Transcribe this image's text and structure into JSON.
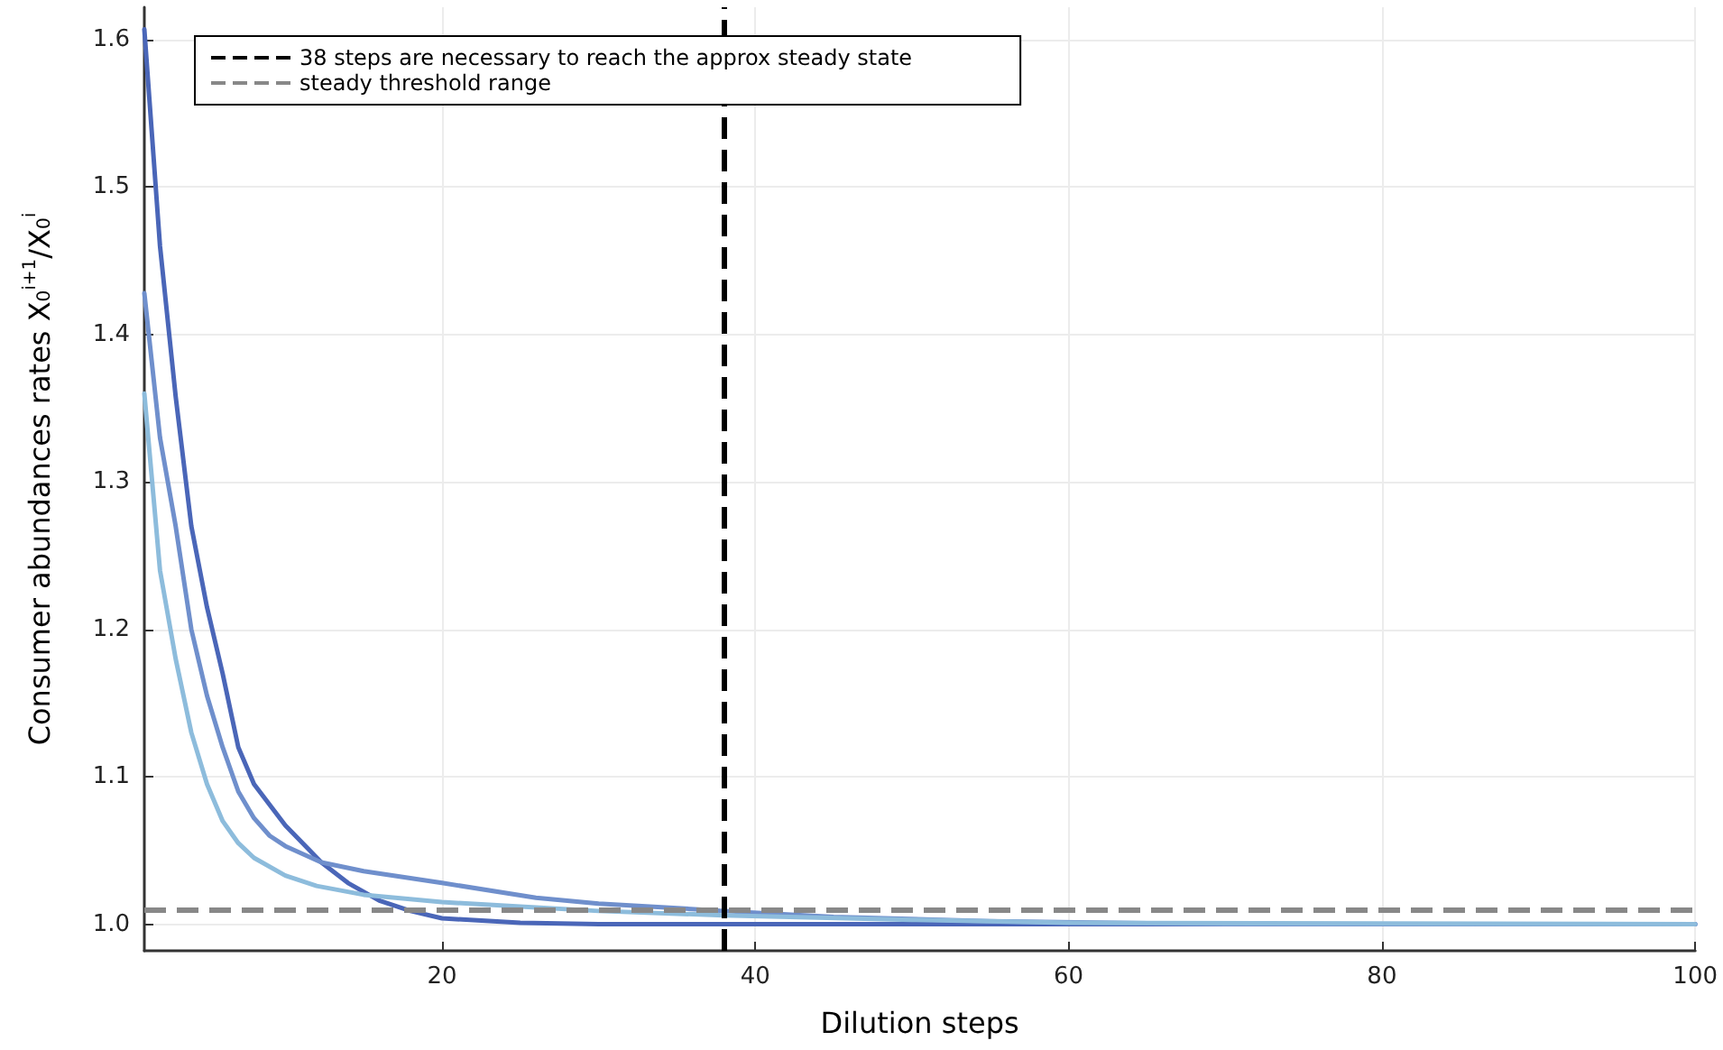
{
  "chart_data": {
    "type": "line",
    "xlabel": "Dilution steps",
    "ylabel": "Consumer abundances rates X$_{0}$$^{i+1}$/X$_{0}$$^{i}$",
    "series": [
      {
        "color": "#4a66b8",
        "x": [
          1,
          2,
          3,
          4,
          5,
          6,
          7,
          8,
          10,
          12.3,
          14,
          16,
          18,
          20,
          25,
          30,
          40,
          100
        ],
        "values": [
          1.607,
          1.46,
          1.358,
          1.27,
          1.215,
          1.17,
          1.12,
          1.095,
          1.067,
          1.042,
          1.028,
          1.016,
          1.009,
          1.004,
          1.001,
          1.0,
          1.0,
          1.0
        ]
      },
      {
        "color": "#6f8fcc",
        "x": [
          1,
          2,
          3,
          4,
          5,
          6,
          7,
          8,
          9,
          10,
          12.3,
          15,
          20,
          26,
          30,
          38,
          45,
          55,
          70,
          100
        ],
        "values": [
          1.428,
          1.33,
          1.27,
          1.2,
          1.155,
          1.12,
          1.09,
          1.072,
          1.06,
          1.053,
          1.042,
          1.036,
          1.028,
          1.018,
          1.014,
          1.009,
          1.005,
          1.002,
          1.0,
          1.0
        ]
      },
      {
        "color": "#8dbcdc",
        "x": [
          1,
          2,
          3,
          4,
          5,
          6,
          7,
          8,
          10,
          12,
          15,
          20,
          25,
          30,
          38,
          50,
          60,
          100
        ],
        "values": [
          1.36,
          1.24,
          1.18,
          1.13,
          1.095,
          1.07,
          1.055,
          1.045,
          1.033,
          1.026,
          1.02,
          1.015,
          1.012,
          1.009,
          1.006,
          1.003,
          1.001,
          1.0
        ]
      }
    ],
    "xlim": [
      1,
      100
    ],
    "xticks": [
      20,
      40,
      60,
      80,
      100
    ],
    "ylim": [
      0.982,
      1.622
    ],
    "yticks": [
      {
        "value": 1.0,
        "label": "1.0"
      },
      {
        "value": 1.1,
        "label": "1.1"
      },
      {
        "value": 1.2,
        "label": "1.2"
      },
      {
        "value": 1.3,
        "label": "1.3"
      },
      {
        "value": 1.4,
        "label": "1.4"
      },
      {
        "value": 1.5,
        "label": "1.5"
      },
      {
        "value": 1.6,
        "label": "1.6"
      }
    ],
    "ref_lines": [
      {
        "axis": "x",
        "value": 38,
        "label": "38 steps are necessary to reach the approx steady state",
        "color": "#000000",
        "line_style": "dashed"
      },
      {
        "axis": "y",
        "value": 1.01,
        "label": "steady threshold range",
        "color": "#888888",
        "line_style": "dashed"
      }
    ],
    "grid": true,
    "legend": "top left",
    "marker": "none",
    "line_style": "solid"
  }
}
